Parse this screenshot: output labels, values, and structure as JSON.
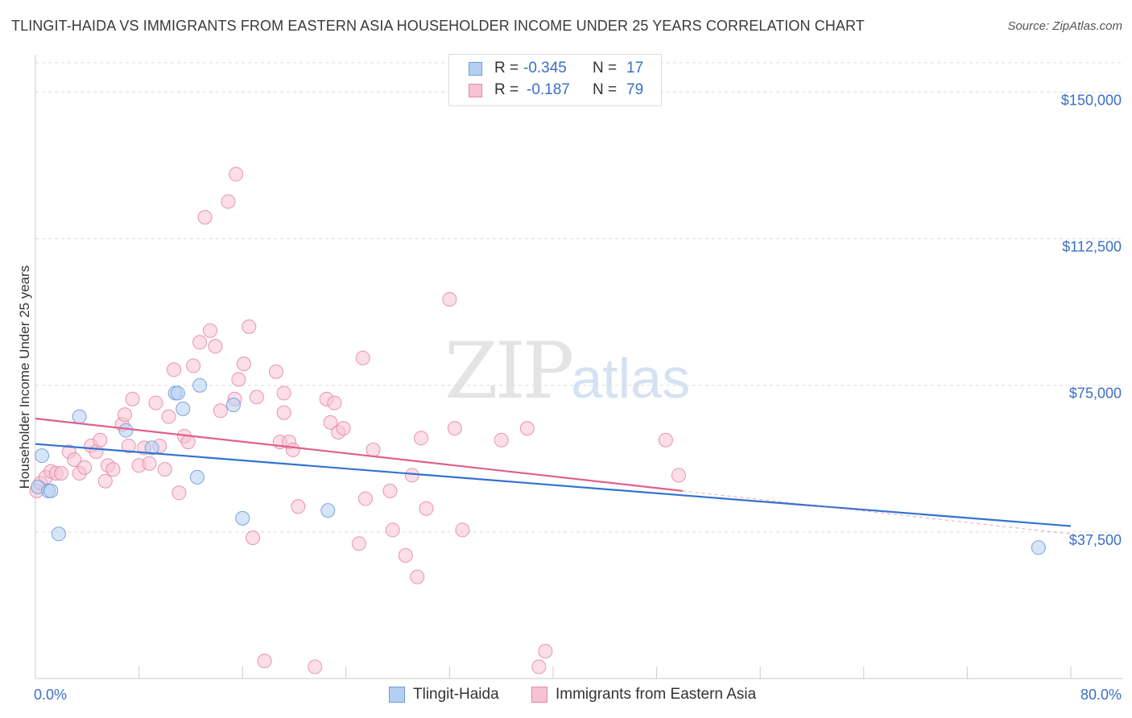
{
  "title": "TLINGIT-HAIDA VS IMMIGRANTS FROM EASTERN ASIA HOUSEHOLDER INCOME UNDER 25 YEARS CORRELATION CHART",
  "source": "Source: ZipAtlas.com",
  "watermark": {
    "zip": "ZIP",
    "atlas": "atlas"
  },
  "legend": {
    "rows": [
      {
        "r_label": "R =",
        "r_value": "-0.345",
        "n_label": "N =",
        "n_value": "17"
      },
      {
        "r_label": "R =",
        "r_value": "-0.187",
        "n_label": "N =",
        "n_value": "79"
      }
    ]
  },
  "colors": {
    "blue_fill": "#b4cff2",
    "blue_stroke": "#6f9bd8",
    "blue_line": "#3272d0",
    "pink_fill": "#f7c3d3",
    "pink_stroke": "#e68aa8",
    "pink_line": "#e0608c",
    "tick_label": "#3a6fc4",
    "grid": "#dcdcdc"
  },
  "chart_data": {
    "type": "scatter",
    "xlabel": "",
    "ylabel": "Householder Income Under 25 years",
    "xlim": [
      0,
      80
    ],
    "ylim": [
      0,
      157500
    ],
    "x_tick_labels": [
      {
        "value": 0,
        "label": "0.0%"
      },
      {
        "value": 80,
        "label": "80.0%"
      }
    ],
    "y_tick_labels": [
      {
        "value": 37500,
        "label": "$37,500"
      },
      {
        "value": 75000,
        "label": "$75,000"
      },
      {
        "value": 112500,
        "label": "$112,500"
      },
      {
        "value": 150000,
        "label": "$150,000"
      }
    ],
    "grid": true,
    "legend_position": "top-center",
    "series": [
      {
        "name": "Tlingit-Haida",
        "r": -0.345,
        "n": 17,
        "points": [
          [
            0.2,
            49000
          ],
          [
            0.5,
            57000
          ],
          [
            1.0,
            48000
          ],
          [
            1.2,
            48000
          ],
          [
            1.8,
            37000
          ],
          [
            3.4,
            67000
          ],
          [
            7.0,
            63500
          ],
          [
            9.0,
            59000
          ],
          [
            10.8,
            73000
          ],
          [
            11.0,
            73000
          ],
          [
            11.4,
            69000
          ],
          [
            12.5,
            51500
          ],
          [
            12.7,
            75000
          ],
          [
            15.3,
            70000
          ],
          [
            16.0,
            41000
          ],
          [
            22.6,
            43000
          ],
          [
            77.5,
            33500
          ]
        ],
        "trend": {
          "x": [
            0,
            80
          ],
          "y": [
            60000,
            39000
          ]
        }
      },
      {
        "name": "Immigrants from Eastern Asia",
        "r": -0.187,
        "n": 79,
        "points": [
          [
            0.1,
            48000
          ],
          [
            0.4,
            50000
          ],
          [
            0.8,
            51500
          ],
          [
            1.2,
            53000
          ],
          [
            1.6,
            52500
          ],
          [
            2.0,
            52500
          ],
          [
            2.6,
            58000
          ],
          [
            3.0,
            56000
          ],
          [
            3.4,
            52500
          ],
          [
            3.8,
            54000
          ],
          [
            4.3,
            59500
          ],
          [
            4.7,
            58000
          ],
          [
            5.0,
            61000
          ],
          [
            5.4,
            50500
          ],
          [
            5.6,
            54500
          ],
          [
            6.0,
            53500
          ],
          [
            6.7,
            65000
          ],
          [
            6.9,
            67500
          ],
          [
            7.2,
            59500
          ],
          [
            7.5,
            71500
          ],
          [
            8.0,
            54500
          ],
          [
            8.4,
            59000
          ],
          [
            8.8,
            55000
          ],
          [
            9.3,
            70500
          ],
          [
            9.6,
            59500
          ],
          [
            10.0,
            53500
          ],
          [
            10.3,
            67000
          ],
          [
            10.7,
            79000
          ],
          [
            11.1,
            47500
          ],
          [
            11.5,
            62000
          ],
          [
            11.8,
            60500
          ],
          [
            12.2,
            80000
          ],
          [
            12.7,
            86000
          ],
          [
            13.1,
            118000
          ],
          [
            13.5,
            89000
          ],
          [
            13.9,
            85000
          ],
          [
            14.3,
            68500
          ],
          [
            14.9,
            122000
          ],
          [
            15.4,
            71500
          ],
          [
            15.5,
            129000
          ],
          [
            15.7,
            76500
          ],
          [
            16.1,
            80500
          ],
          [
            16.5,
            90000
          ],
          [
            16.8,
            36000
          ],
          [
            17.1,
            72000
          ],
          [
            17.7,
            4500
          ],
          [
            18.6,
            78500
          ],
          [
            18.9,
            60500
          ],
          [
            19.2,
            68000
          ],
          [
            19.2,
            73000
          ],
          [
            19.6,
            60500
          ],
          [
            19.9,
            58500
          ],
          [
            20.3,
            44000
          ],
          [
            21.6,
            3000
          ],
          [
            22.5,
            71500
          ],
          [
            22.8,
            65500
          ],
          [
            23.1,
            70500
          ],
          [
            23.4,
            63000
          ],
          [
            23.8,
            64000
          ],
          [
            25.3,
            82000
          ],
          [
            25.0,
            34500
          ],
          [
            25.5,
            46000
          ],
          [
            26.1,
            58500
          ],
          [
            27.4,
            48000
          ],
          [
            27.6,
            38000
          ],
          [
            28.6,
            31500
          ],
          [
            29.1,
            52000
          ],
          [
            29.5,
            26000
          ],
          [
            29.8,
            61500
          ],
          [
            30.2,
            43500
          ],
          [
            32.0,
            97000
          ],
          [
            32.4,
            64000
          ],
          [
            33.0,
            38000
          ],
          [
            36.0,
            61000
          ],
          [
            38.0,
            64000
          ],
          [
            38.9,
            3000
          ],
          [
            39.4,
            7000
          ],
          [
            48.7,
            61000
          ],
          [
            49.7,
            52000
          ]
        ],
        "trend": {
          "x": [
            0,
            50
          ],
          "y": [
            66500,
            48000
          ]
        },
        "trend_extension": {
          "x": [
            50,
            80
          ],
          "y": [
            48000,
            37000
          ]
        }
      }
    ]
  },
  "bottom_legend": {
    "items": [
      {
        "label": "Tlingit-Haida"
      },
      {
        "label": "Immigrants from Eastern Asia"
      }
    ]
  }
}
